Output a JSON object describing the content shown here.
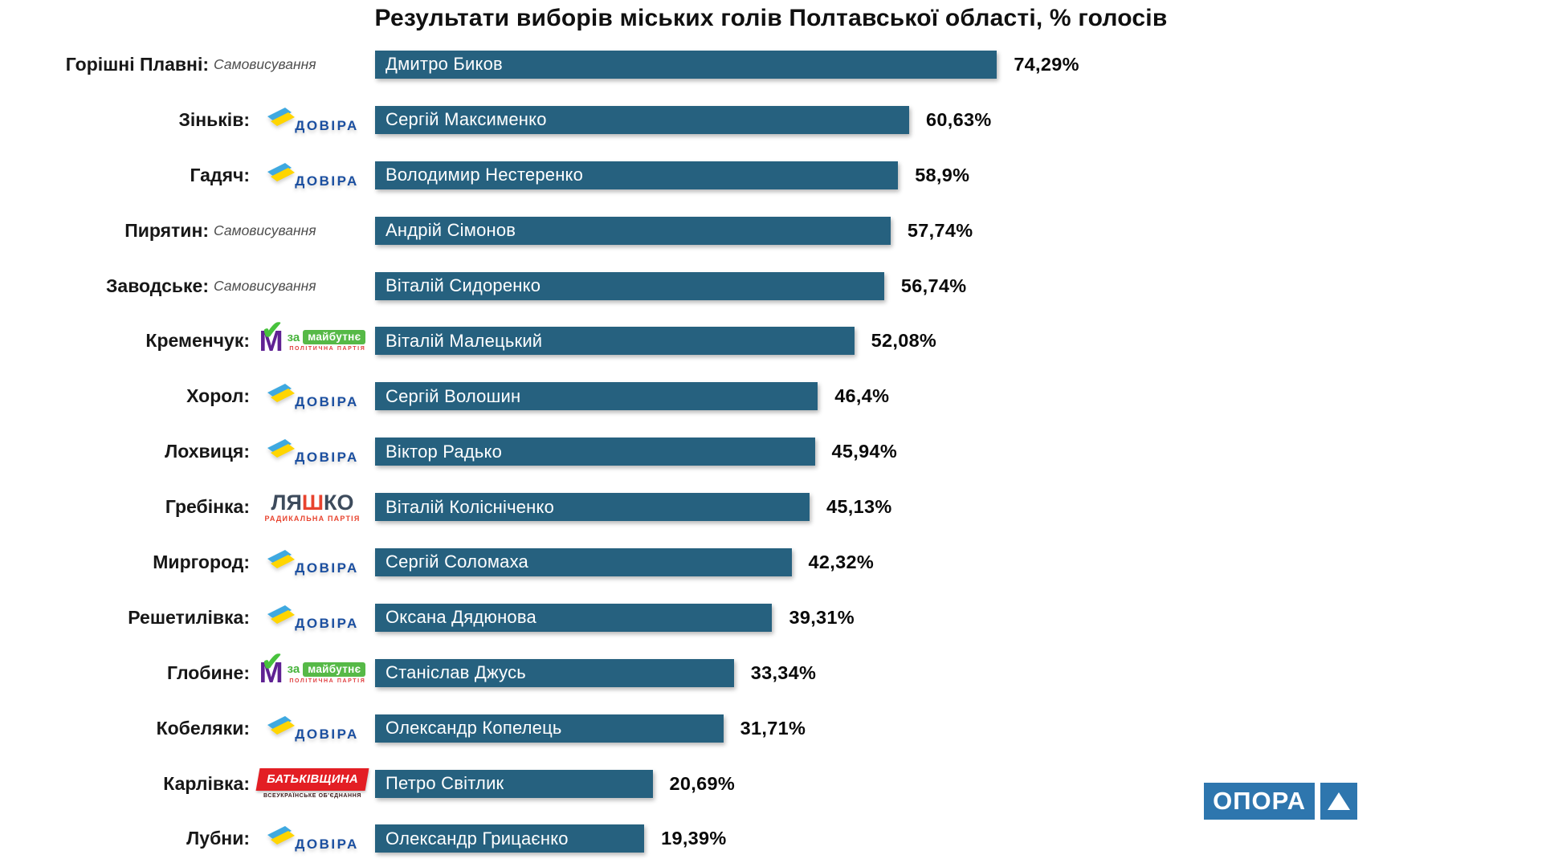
{
  "title": "Результати виборів міських голів Полтавської області, % голосів",
  "chart_data": {
    "type": "bar",
    "orientation": "horizontal",
    "title": "Результати виборів міських голів Полтавської області, % голосів",
    "unit": "%",
    "decimal_separator": ",",
    "xlim": [
      0,
      80
    ],
    "grid": false,
    "bar_color": "#26617f",
    "categories": [
      "Горішні Плавні",
      "Зіньків",
      "Гадяч",
      "Пирятин",
      "Заводське",
      "Кременчук",
      "Хорол",
      "Лохвиця",
      "Гребінка",
      "Миргород",
      "Решетилівка",
      "Глобине",
      "Кобеляки",
      "Карлівка",
      "Лубни"
    ],
    "series": [
      {
        "name": "% голосів",
        "values": [
          74.29,
          60.63,
          58.9,
          57.74,
          56.74,
          52.08,
          46.4,
          45.94,
          45.13,
          42.32,
          39.31,
          33.34,
          31.71,
          20.69,
          19.39
        ]
      }
    ],
    "bar_labels": [
      "Дмитро Биков",
      "Сергій Максименко",
      "Володимир Нестеренко",
      "Андрій Сімонов",
      "Віталій Сидоренко",
      "Віталій Малецький",
      "Сергій Волошин",
      "Віктор Радько",
      "Віталій Колісніченко",
      "Сергій Соломаха",
      "Оксана Дядюнова",
      "Станіслав Джусь",
      "Олександр Копелець",
      "Петро Світлик",
      "Олександр Грицаєнко"
    ],
    "value_labels": [
      "74,29%",
      "60,63%",
      "58,9%",
      "57,74%",
      "56,74%",
      "52,08%",
      "46,4%",
      "45,94%",
      "45,13%",
      "42,32%",
      "39,31%",
      "33,34%",
      "31,71%",
      "20,69%",
      "19,39%"
    ]
  },
  "rows": [
    {
      "city": "Горішні Плавні:",
      "party_type": "self",
      "candidate": "Дмитро Биков",
      "value": 74.29,
      "value_label": "74,29%"
    },
    {
      "city": "Зіньків:",
      "party_type": "dovira",
      "candidate": "Сергій Максименко",
      "value": 60.63,
      "value_label": "60,63%"
    },
    {
      "city": "Гадяч:",
      "party_type": "dovira",
      "candidate": "Володимир Нестеренко",
      "value": 58.9,
      "value_label": "58,9%"
    },
    {
      "city": "Пирятин:",
      "party_type": "self",
      "candidate": "Андрій Сімонов",
      "value": 57.74,
      "value_label": "57,74%"
    },
    {
      "city": "Заводське:",
      "party_type": "self",
      "candidate": "Віталій Сидоренко",
      "value": 56.74,
      "value_label": "56,74%"
    },
    {
      "city": "Кременчук:",
      "party_type": "za_maibutne",
      "candidate": "Віталій Малецький",
      "value": 52.08,
      "value_label": "52,08%"
    },
    {
      "city": "Хорол:",
      "party_type": "dovira",
      "candidate": "Сергій Волошин",
      "value": 46.4,
      "value_label": "46,4%"
    },
    {
      "city": "Лохвиця:",
      "party_type": "dovira",
      "candidate": "Віктор Радько",
      "value": 45.94,
      "value_label": "45,94%"
    },
    {
      "city": "Гребінка:",
      "party_type": "liashko",
      "candidate": "Віталій Колісніченко",
      "value": 45.13,
      "value_label": "45,13%"
    },
    {
      "city": "Миргород:",
      "party_type": "dovira",
      "candidate": "Сергій Соломаха",
      "value": 42.32,
      "value_label": "42,32%"
    },
    {
      "city": "Решетилівка:",
      "party_type": "dovira",
      "candidate": "Оксана Дядюнова",
      "value": 39.31,
      "value_label": "39,31%"
    },
    {
      "city": "Глобине:",
      "party_type": "za_maibutne",
      "candidate": "Станіслав Джусь",
      "value": 33.34,
      "value_label": "33,34%"
    },
    {
      "city": "Кобеляки:",
      "party_type": "dovira",
      "candidate": "Олександр Копелець",
      "value": 31.71,
      "value_label": "31,71%"
    },
    {
      "city": "Карлівка:",
      "party_type": "batkivshchyna",
      "candidate": "Петро Світлик",
      "value": 20.69,
      "value_label": "20,69%"
    },
    {
      "city": "Лубни:",
      "party_type": "dovira",
      "candidate": "Олександр Грицаєнко",
      "value": 19.39,
      "value_label": "19,39%"
    }
  ],
  "parties": {
    "self": {
      "label": "Самовисування"
    },
    "dovira": {
      "label": "ДОВІРА"
    },
    "za_maibutne": {
      "za": "за",
      "main": "майбутнє",
      "sub": "ПОЛІТИЧНА ПАРТІЯ"
    },
    "liashko": {
      "part1": "ЛЯ",
      "part2": "Ш",
      "part3": "КО",
      "sub": "РАДИКАЛЬНА ПАРТІЯ"
    },
    "batkivshchyna": {
      "label": "БАТЬКІВЩИНА",
      "sub": "ВСЕУКРАЇНСЬКЕ ОБ'ЄДНАННЯ"
    }
  },
  "footer_logo": {
    "text": "ОПОРА"
  },
  "colors": {
    "bar": "#26617f",
    "opora_blue": "#2e76ae",
    "dovira_blue": "#1b4fa0",
    "flag_blue": "#3fa9e0",
    "flag_yellow": "#ffd500",
    "zm_purple": "#5f2293",
    "zm_green": "#56b947",
    "liashko_navy": "#3d4b5c",
    "liashko_red": "#e8432e",
    "bat_red": "#e31e24"
  }
}
